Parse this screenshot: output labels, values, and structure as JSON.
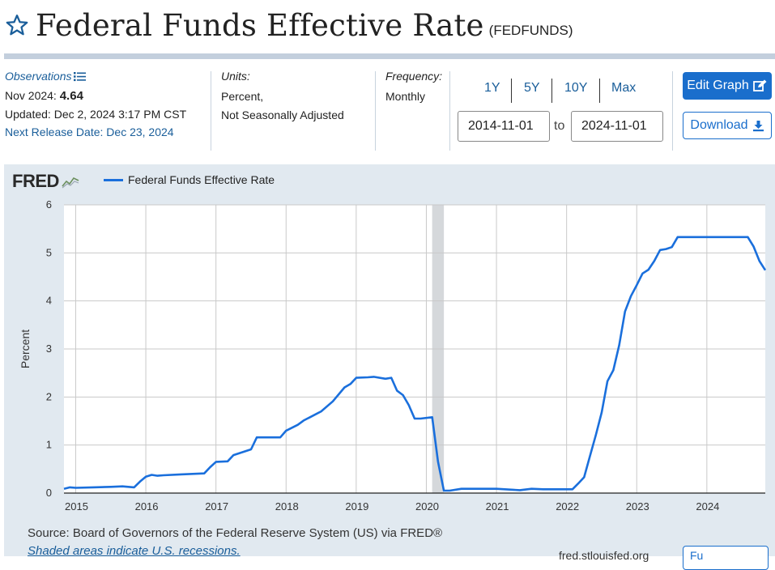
{
  "header": {
    "title": "Federal Funds Effective Rate",
    "series_id": "(FEDFUNDS)"
  },
  "observations": {
    "label": "Observations",
    "latest_period": "Nov 2024:",
    "latest_value": "4.64",
    "updated": "Updated: Dec 2, 2024 3:17 PM CST",
    "next_release_label": "Next Release Date:",
    "next_release_date": "Dec 23, 2024"
  },
  "units": {
    "label": "Units:",
    "line1": "Percent,",
    "line2": "Not Seasonally Adjusted"
  },
  "frequency": {
    "label": "Frequency:",
    "value": "Monthly"
  },
  "range": {
    "buttons": [
      "1Y",
      "5Y",
      "10Y",
      "Max"
    ],
    "start": "2014-11-01",
    "to": "to",
    "end": "2024-11-01"
  },
  "actions": {
    "edit": "Edit Graph",
    "download": "Download",
    "fullscreen": "Fu"
  },
  "footer": {
    "source": "Source: Board of Governors of the Federal Reserve System (US) via FRED®",
    "recession_note": "Shaded areas indicate U.S. recessions.",
    "url": "fred.stlouisfed.org"
  },
  "colors": {
    "line": "#1a6fdc",
    "panel": "#e1e9f0",
    "accent": "#1a6ecc",
    "recession": "#d5d8db"
  },
  "chart_data": {
    "type": "line",
    "title": "Federal Funds Effective Rate",
    "logo": "FRED",
    "ylabel": "Percent",
    "xlabel": "",
    "ylim": [
      0,
      6
    ],
    "yticks": [
      0,
      1,
      2,
      3,
      4,
      5,
      6
    ],
    "xlim": [
      2014.833,
      2024.833
    ],
    "xticks": [
      2015,
      2016,
      2017,
      2018,
      2019,
      2020,
      2021,
      2022,
      2023,
      2024
    ],
    "grid": true,
    "recessions": [
      [
        2020.083,
        2020.25
      ]
    ],
    "series": [
      {
        "name": "Federal Funds Effective Rate",
        "x": [
          2014.833,
          2014.917,
          2015.0,
          2015.25,
          2015.5,
          2015.667,
          2015.833,
          2015.917,
          2016.0,
          2016.083,
          2016.167,
          2016.25,
          2016.5,
          2016.667,
          2016.833,
          2016.917,
          2017.0,
          2017.167,
          2017.25,
          2017.5,
          2017.583,
          2017.917,
          2018.0,
          2018.167,
          2018.25,
          2018.5,
          2018.667,
          2018.833,
          2018.917,
          2019.0,
          2019.167,
          2019.25,
          2019.417,
          2019.5,
          2019.583,
          2019.667,
          2019.75,
          2019.833,
          2019.917,
          2020.083,
          2020.167,
          2020.25,
          2020.333,
          2020.5,
          2020.667,
          2021.0,
          2021.333,
          2021.5,
          2021.667,
          2022.083,
          2022.167,
          2022.25,
          2022.333,
          2022.417,
          2022.5,
          2022.583,
          2022.667,
          2022.75,
          2022.833,
          2022.917,
          2023.0,
          2023.083,
          2023.167,
          2023.25,
          2023.333,
          2023.417,
          2023.5,
          2023.583,
          2023.667,
          2024.0,
          2024.333,
          2024.583,
          2024.667,
          2024.75,
          2024.833
        ],
        "values": [
          0.09,
          0.12,
          0.11,
          0.12,
          0.13,
          0.14,
          0.12,
          0.24,
          0.34,
          0.38,
          0.36,
          0.37,
          0.39,
          0.4,
          0.41,
          0.54,
          0.65,
          0.66,
          0.79,
          0.91,
          1.16,
          1.16,
          1.3,
          1.42,
          1.51,
          1.7,
          1.91,
          2.2,
          2.27,
          2.4,
          2.41,
          2.42,
          2.38,
          2.4,
          2.13,
          2.04,
          1.83,
          1.55,
          1.55,
          1.58,
          0.65,
          0.05,
          0.05,
          0.09,
          0.09,
          0.09,
          0.06,
          0.09,
          0.08,
          0.08,
          0.2,
          0.33,
          0.77,
          1.21,
          1.68,
          2.33,
          2.56,
          3.08,
          3.78,
          4.1,
          4.33,
          4.57,
          4.65,
          4.83,
          5.06,
          5.08,
          5.12,
          5.33,
          5.33,
          5.33,
          5.33,
          5.33,
          5.13,
          4.83,
          4.64
        ]
      }
    ]
  }
}
